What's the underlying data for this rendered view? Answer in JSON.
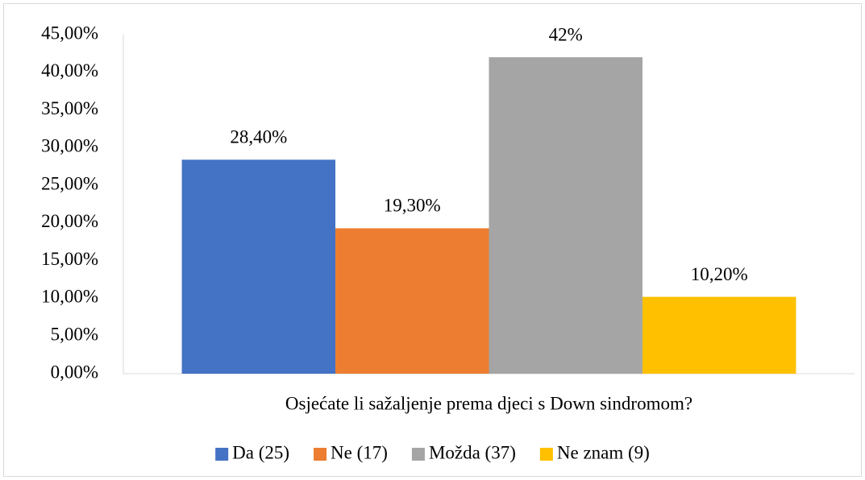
{
  "chart_data": {
    "type": "bar",
    "categories": [
      "Osjećate li sažaljenje prema djeci s Down sindromom?"
    ],
    "series": [
      {
        "name": "Da (25)",
        "color": "#4472c4",
        "values": [
          28.4
        ],
        "value_labels": [
          "28,40%"
        ]
      },
      {
        "name": "Ne (17)",
        "color": "#ed7d31",
        "values": [
          19.3
        ],
        "value_labels": [
          "19,30%"
        ]
      },
      {
        "name": "Možda (37)",
        "color": "#a5a5a5",
        "values": [
          42
        ],
        "value_labels": [
          "42%"
        ]
      },
      {
        "name": "Ne znam (9)",
        "color": "#ffc000",
        "values": [
          10.2
        ],
        "value_labels": [
          "10,20%"
        ]
      }
    ],
    "ylim": [
      0,
      45
    ],
    "yticks": [
      {
        "value": 0,
        "label": "0,00%"
      },
      {
        "value": 5,
        "label": "5,00%"
      },
      {
        "value": 10,
        "label": "10,00%"
      },
      {
        "value": 15,
        "label": "15,00%"
      },
      {
        "value": 20,
        "label": "20,00%"
      },
      {
        "value": 25,
        "label": "25,00%"
      },
      {
        "value": 30,
        "label": "30,00%"
      },
      {
        "value": 35,
        "label": "35,00%"
      },
      {
        "value": 40,
        "label": "40,00%"
      },
      {
        "value": 45,
        "label": "45,00%"
      }
    ],
    "grid": false,
    "legend": "bottom"
  }
}
